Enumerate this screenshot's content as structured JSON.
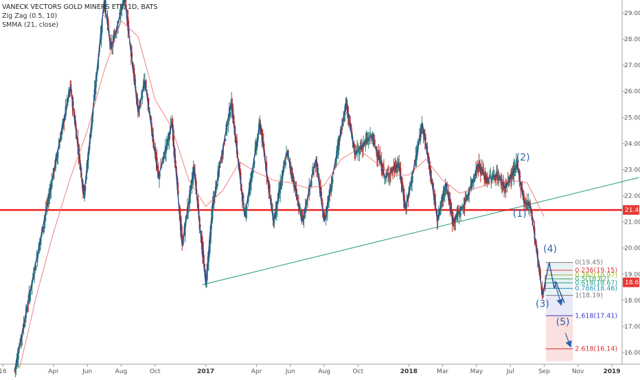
{
  "legend": {
    "title": "VANECK VECTORS GOLD MINERS ETF, 1D, BATS",
    "zigzag": "Zig Zag (0.5, 10)",
    "smma": "SMMA (21, close)"
  },
  "colors": {
    "candle_up": "#2e7d7a",
    "candle_down": "#b03030",
    "zigzag": "#2a4f8f",
    "smma": "#f08080",
    "trendline": "#3da68c",
    "support": "#ee1c1c",
    "wave_label": "#2a62a8"
  },
  "chart_data": {
    "type": "candlestick",
    "y_axis": {
      "ylim": [
        15.75,
        29.45
      ],
      "ticks": [
        "16.00",
        "17.00",
        "18.00",
        "19.00",
        "20.00",
        "21.00",
        "22.00",
        "23.00",
        "24.00",
        "25.00",
        "26.00",
        "27.00",
        "28.00",
        "29.00"
      ]
    },
    "x_axis": {
      "ticks": [
        {
          "label": "16",
          "t": 0,
          "bold": false
        },
        {
          "label": "Apr",
          "t": 3,
          "bold": false
        },
        {
          "label": "Jun",
          "t": 5,
          "bold": false
        },
        {
          "label": "Aug",
          "t": 7,
          "bold": false
        },
        {
          "label": "Oct",
          "t": 9,
          "bold": false
        },
        {
          "label": "2017",
          "t": 12,
          "bold": true
        },
        {
          "label": "Apr",
          "t": 15,
          "bold": false
        },
        {
          "label": "Jun",
          "t": 17,
          "bold": false
        },
        {
          "label": "Aug",
          "t": 19,
          "bold": false
        },
        {
          "label": "Oct",
          "t": 21,
          "bold": false
        },
        {
          "label": "2018",
          "t": 24,
          "bold": true
        },
        {
          "label": "Mar",
          "t": 26,
          "bold": false
        },
        {
          "label": "May",
          "t": 28,
          "bold": false
        },
        {
          "label": "Jul",
          "t": 30,
          "bold": false
        },
        {
          "label": "Sep",
          "t": 32,
          "bold": false
        },
        {
          "label": "Nov",
          "t": 34,
          "bold": false
        },
        {
          "label": "2019",
          "t": 36,
          "bold": true
        }
      ]
    },
    "zigzag_points": [
      [
        0.7,
        15.3
      ],
      [
        4.0,
        26.2
      ],
      [
        4.8,
        22.0
      ],
      [
        6.0,
        29.5
      ],
      [
        6.4,
        27.6
      ],
      [
        7.2,
        29.6
      ],
      [
        8.0,
        25.2
      ],
      [
        8.4,
        26.4
      ],
      [
        9.2,
        22.7
      ],
      [
        10.0,
        24.8
      ],
      [
        10.6,
        20.1
      ],
      [
        11.3,
        23.1
      ],
      [
        12.0,
        18.6
      ],
      [
        12.4,
        21.6
      ],
      [
        13.5,
        25.6
      ],
      [
        14.3,
        21.2
      ],
      [
        15.2,
        24.8
      ],
      [
        16.0,
        21.0
      ],
      [
        16.8,
        23.7
      ],
      [
        17.7,
        21.0
      ],
      [
        18.5,
        23.4
      ],
      [
        19.0,
        21.0
      ],
      [
        20.3,
        25.6
      ],
      [
        20.8,
        23.6
      ],
      [
        21.8,
        24.3
      ],
      [
        22.6,
        22.7
      ],
      [
        23.4,
        23.2
      ],
      [
        23.8,
        21.5
      ],
      [
        24.4,
        23.4
      ],
      [
        24.8,
        24.8
      ],
      [
        25.7,
        21.1
      ],
      [
        26.2,
        22.5
      ],
      [
        26.6,
        21.0
      ],
      [
        27.3,
        21.7
      ],
      [
        28.1,
        23.2
      ],
      [
        28.6,
        22.6
      ],
      [
        29.2,
        22.8
      ],
      [
        29.7,
        22.3
      ],
      [
        30.4,
        23.2
      ],
      [
        30.8,
        21.8
      ],
      [
        31.2,
        21.6
      ],
      [
        31.9,
        18.2
      ],
      [
        32.3,
        19.45
      ],
      [
        32.6,
        18.45
      ],
      [
        32.7,
        18.7
      ],
      [
        33.2,
        17.9
      ]
    ],
    "smma_points": [
      [
        1.0,
        15.4
      ],
      [
        2.0,
        18.2
      ],
      [
        3.0,
        20.6
      ],
      [
        4.0,
        22.7
      ],
      [
        5.0,
        24.5
      ],
      [
        6.0,
        26.8
      ],
      [
        7.0,
        28.7
      ],
      [
        8.0,
        28.1
      ],
      [
        9.0,
        25.7
      ],
      [
        10.0,
        24.6
      ],
      [
        11.0,
        22.6
      ],
      [
        12.0,
        21.6
      ],
      [
        13.0,
        22.2
      ],
      [
        14.0,
        23.3
      ],
      [
        15.0,
        22.9
      ],
      [
        16.0,
        22.6
      ],
      [
        17.0,
        22.5
      ],
      [
        18.0,
        22.3
      ],
      [
        19.0,
        22.4
      ],
      [
        20.0,
        23.4
      ],
      [
        21.0,
        23.8
      ],
      [
        22.0,
        23.3
      ],
      [
        23.0,
        22.8
      ],
      [
        24.0,
        22.8
      ],
      [
        25.0,
        23.4
      ],
      [
        26.0,
        22.6
      ],
      [
        27.0,
        22.1
      ],
      [
        28.0,
        22.3
      ],
      [
        29.0,
        22.5
      ],
      [
        30.0,
        22.6
      ],
      [
        31.0,
        22.5
      ],
      [
        32.0,
        21.2
      ]
    ],
    "trendline": {
      "from": [
        11.8,
        18.6
      ],
      "to": [
        37.6,
        22.7
      ]
    },
    "support_level": 21.46,
    "last_price": 18.69,
    "wave_labels": [
      {
        "label": "(1)",
        "t": 30.55,
        "v": 21.2
      },
      {
        "label": "(2)",
        "t": 30.75,
        "v": 23.35
      },
      {
        "label": "(3)",
        "t": 31.9,
        "v": 17.75
      },
      {
        "label": "(4)",
        "t": 32.35,
        "v": 19.85
      },
      {
        "label": "(5)",
        "t": 33.1,
        "v": 17.05
      }
    ],
    "fib": {
      "t_start": 32.1,
      "t_end": 33.7,
      "levels": [
        {
          "ratio": "0",
          "value": 19.45,
          "text": "0(19.45)",
          "color": "#7a7a7a"
        },
        {
          "ratio": "0.236",
          "value": 19.15,
          "text": "0.236(19.15)",
          "color": "#d44040"
        },
        {
          "ratio": "0.382",
          "value": 18.97,
          "text": "0.382(18.97)",
          "color": "#a1b530"
        },
        {
          "ratio": "0.5",
          "value": 18.82,
          "text": "0.5(18.82)",
          "color": "#3ba65a"
        },
        {
          "ratio": "0.618",
          "value": 18.67,
          "text": "0.618(18.67)",
          "color": "#21a08a"
        },
        {
          "ratio": "0.786",
          "value": 18.46,
          "text": "0.786(18.46)",
          "color": "#2b8fb6"
        },
        {
          "ratio": "1",
          "value": 18.19,
          "text": "1(18.19)",
          "color": "#7a7a7a"
        },
        {
          "ratio": "1.618",
          "value": 17.41,
          "text": "1.618(17.41)",
          "color": "#3a3ac9"
        },
        {
          "ratio": "2.618",
          "value": 16.14,
          "text": "2.618(16.14)",
          "color": "#d42c2c"
        }
      ]
    }
  }
}
